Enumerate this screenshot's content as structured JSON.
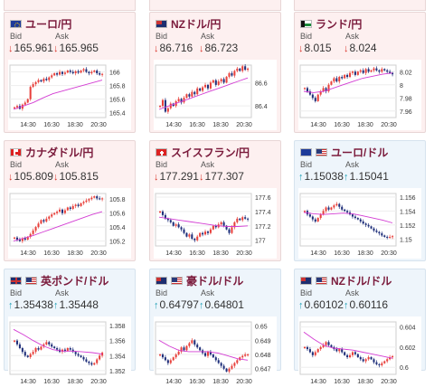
{
  "labels": {
    "bid": "Bid",
    "ask": "Ask"
  },
  "colors": {
    "down": "#d9342b",
    "up": "#1f9fb5",
    "candle_up": "#e8413c",
    "candle_down": "#1f2f7a",
    "ma": "#d33cd3"
  },
  "cards": [
    {
      "pair": "ユーロ/円",
      "flag": "eu",
      "direction": "down",
      "bid": "165.961",
      "ask": "165.965",
      "yticks": [
        "166",
        "165.8",
        "165.6",
        "165.4"
      ],
      "xticks": [
        "14:30",
        "16:30",
        "18:30",
        "20:30"
      ],
      "ylim": [
        165.33,
        166.1
      ],
      "ohlc": [
        165.48,
        165.5,
        165.46,
        165.52,
        165.55,
        165.6,
        165.78,
        165.82,
        165.85,
        165.88,
        165.86,
        165.9,
        165.88,
        165.92,
        165.95,
        165.98,
        165.96,
        166.0,
        165.97,
        165.99,
        166.02,
        166.0,
        165.98,
        166.01,
        165.99,
        166.02,
        166.04,
        166.0,
        165.98,
        166.0,
        166.02,
        165.98,
        165.96,
        165.97
      ],
      "ma": [
        165.45,
        165.5,
        165.55,
        165.62,
        165.68,
        165.72,
        165.76,
        165.8,
        165.84,
        165.88
      ]
    },
    {
      "pair": "NZドル/円",
      "flag": "nz",
      "direction": "down",
      "bid": "86.716",
      "ask": "86.723",
      "yticks": [
        "86.6",
        "86.4"
      ],
      "xticks": [
        "14:30",
        "16:30",
        "18:30",
        "20:30"
      ],
      "ylim": [
        86.3,
        86.75
      ],
      "ohlc": [
        86.4,
        86.45,
        86.35,
        86.38,
        86.42,
        86.4,
        86.44,
        86.46,
        86.43,
        86.47,
        86.5,
        86.48,
        86.52,
        86.5,
        86.55,
        86.53,
        86.56,
        86.58,
        86.55,
        86.6,
        86.62,
        86.58,
        86.61,
        86.63,
        86.6,
        86.65,
        86.68,
        86.66,
        86.7,
        86.72,
        86.7,
        86.74,
        86.71,
        86.72
      ],
      "ma": [
        86.37,
        86.4,
        86.43,
        86.46,
        86.49,
        86.52,
        86.55,
        86.58,
        86.61,
        86.64
      ]
    },
    {
      "pair": "ランド/円",
      "flag": "za",
      "direction": "down",
      "bid": "8.015",
      "ask": "8.024",
      "yticks": [
        "8.02",
        "8",
        "7.98",
        "7.96"
      ],
      "xticks": [
        "14:30",
        "16:30",
        "18:30",
        "20:30"
      ],
      "ylim": [
        7.95,
        8.03
      ],
      "ohlc": [
        7.995,
        7.99,
        7.985,
        7.98,
        7.975,
        7.985,
        7.99,
        7.995,
        7.99,
        8.0,
        8.005,
        8.01,
        8.005,
        8.012,
        8.01,
        8.015,
        8.012,
        8.018,
        8.02,
        8.015,
        8.02,
        8.022,
        8.018,
        8.024,
        8.02,
        8.022,
        8.025,
        8.022,
        8.02,
        8.024,
        8.022,
        8.02,
        8.018,
        8.016
      ],
      "ma": [
        7.99,
        7.988,
        7.99,
        7.995,
        8.0,
        8.005,
        8.01,
        8.013,
        8.016,
        8.018
      ]
    },
    {
      "pair": "カナダドル/円",
      "flag": "ca",
      "direction": "down",
      "bid": "105.809",
      "ask": "105.815",
      "yticks": [
        "105.8",
        "105.6",
        "105.4",
        "105.2"
      ],
      "xticks": [
        "14:30",
        "16:30",
        "18:30",
        "20:30"
      ],
      "ylim": [
        105.13,
        105.88
      ],
      "ohlc": [
        105.25,
        105.22,
        105.2,
        105.24,
        105.22,
        105.26,
        105.3,
        105.35,
        105.4,
        105.45,
        105.5,
        105.48,
        105.52,
        105.55,
        105.58,
        105.6,
        105.62,
        105.65,
        105.6,
        105.64,
        105.68,
        105.66,
        105.7,
        105.72,
        105.7,
        105.74,
        105.76,
        105.78,
        105.8,
        105.82,
        105.84,
        105.81,
        105.8,
        105.81
      ],
      "ma": [
        105.2,
        105.24,
        105.28,
        105.33,
        105.38,
        105.43,
        105.48,
        105.53,
        105.58,
        105.62
      ]
    },
    {
      "pair": "スイスフラン/円",
      "flag": "ch",
      "direction": "down",
      "bid": "177.291",
      "ask": "177.307",
      "yticks": [
        "177.6",
        "177.4",
        "177.2",
        "177"
      ],
      "xticks": [
        "14:30",
        "16:30",
        "18:30",
        "20:30"
      ],
      "ylim": [
        176.92,
        177.65
      ],
      "ohlc": [
        177.4,
        177.35,
        177.3,
        177.28,
        177.25,
        177.2,
        177.22,
        177.18,
        177.15,
        177.1,
        177.05,
        177.08,
        177.02,
        177.0,
        177.05,
        177.1,
        177.08,
        177.12,
        177.1,
        177.15,
        177.2,
        177.18,
        177.22,
        177.25,
        177.2,
        177.15,
        177.1,
        177.18,
        177.25,
        177.3,
        177.28,
        177.32,
        177.3,
        177.29
      ],
      "ma": [
        177.32,
        177.3,
        177.28,
        177.26,
        177.24,
        177.22,
        177.2,
        177.19,
        177.19,
        177.2
      ]
    },
    {
      "pair": "ユーロ/ドル",
      "flag": "eu_us",
      "direction": "up",
      "bid": "1.15038",
      "ask": "1.15041",
      "yticks": [
        "1.156",
        "1.154",
        "1.152",
        "1.15"
      ],
      "xticks": [
        "14:30",
        "16:30",
        "18:30",
        "20:30"
      ],
      "ylim": [
        1.149,
        1.1565
      ],
      "ohlc": [
        1.154,
        1.1535,
        1.1532,
        1.1528,
        1.1525,
        1.153,
        1.1535,
        1.154,
        1.1545,
        1.1542,
        1.1545,
        1.1548,
        1.155,
        1.1546,
        1.1542,
        1.154,
        1.1538,
        1.1535,
        1.1532,
        1.153,
        1.1528,
        1.1525,
        1.1522,
        1.152,
        1.1518,
        1.1515,
        1.1512,
        1.151,
        1.1508,
        1.1505,
        1.1503,
        1.1502,
        1.1503,
        1.1504
      ],
      "ma": [
        1.1538,
        1.1536,
        1.1535,
        1.1536,
        1.1537,
        1.1536,
        1.1533,
        1.153,
        1.1527,
        1.1523
      ]
    },
    {
      "pair": "英ポンド/ドル",
      "flag": "uk_us",
      "direction": "up",
      "bid": "1.35438",
      "ask": "1.35448",
      "yticks": [
        "1.358",
        "1.356",
        "1.354",
        "1.352"
      ],
      "xticks": [
        "14:30",
        "16:30",
        "18:30",
        "20:30"
      ],
      "ylim": [
        1.3515,
        1.3585
      ],
      "ohlc": [
        1.356,
        1.3555,
        1.355,
        1.3545,
        1.354,
        1.3538,
        1.3542,
        1.3545,
        1.355,
        1.3548,
        1.3552,
        1.3555,
        1.3558,
        1.3555,
        1.3552,
        1.355,
        1.3548,
        1.3545,
        1.3548,
        1.3546,
        1.355,
        1.3548,
        1.3545,
        1.3542,
        1.354,
        1.3538,
        1.3535,
        1.3532,
        1.353,
        1.3528,
        1.353,
        1.3535,
        1.354,
        1.3544
      ],
      "ma": [
        1.3575,
        1.3568,
        1.356,
        1.3553,
        1.3548,
        1.3546,
        1.3546,
        1.3545,
        1.3544,
        1.3542
      ]
    },
    {
      "pair": "豪ドル/ドル",
      "flag": "au_us",
      "direction": "up",
      "bid": "0.64797",
      "ask": "0.64801",
      "yticks": [
        "0.65",
        "0.649",
        "0.648",
        "0.647"
      ],
      "xticks": [
        "14:30",
        "16:30",
        "18:30",
        "20:30"
      ],
      "ylim": [
        0.6466,
        0.6503
      ],
      "ohlc": [
        0.648,
        0.6478,
        0.6476,
        0.6474,
        0.6476,
        0.6478,
        0.648,
        0.6482,
        0.6485,
        0.6483,
        0.6486,
        0.6488,
        0.649,
        0.6487,
        0.6485,
        0.6483,
        0.6481,
        0.6479,
        0.6482,
        0.648,
        0.6478,
        0.6476,
        0.6474,
        0.6472,
        0.647,
        0.6468,
        0.647,
        0.6472,
        0.6474,
        0.6476,
        0.6478,
        0.6479,
        0.648,
        0.648
      ],
      "ma": [
        0.649,
        0.6486,
        0.6483,
        0.6482,
        0.6482,
        0.6482,
        0.6481,
        0.6479,
        0.6477,
        0.6476
      ]
    },
    {
      "pair": "NZドル/ドル",
      "flag": "nz_us",
      "direction": "up",
      "bid": "0.60102",
      "ask": "0.60116",
      "yticks": [
        "0.604",
        "0.602",
        "0.6"
      ],
      "xticks": [
        "14:30",
        "16:30",
        "18:30",
        "20:30"
      ],
      "ylim": [
        0.5993,
        0.6045
      ],
      "ohlc": [
        0.602,
        0.6018,
        0.6015,
        0.6012,
        0.6015,
        0.6018,
        0.602,
        0.6022,
        0.6025,
        0.6022,
        0.602,
        0.6018,
        0.6016,
        0.6018,
        0.6015,
        0.6012,
        0.601,
        0.6012,
        0.6015,
        0.6013,
        0.601,
        0.6008,
        0.6006,
        0.6008,
        0.601,
        0.6008,
        0.6005,
        0.6003,
        0.6002,
        0.6004,
        0.6006,
        0.6008,
        0.601,
        0.6011
      ],
      "ma": [
        0.6035,
        0.6028,
        0.6022,
        0.6019,
        0.6018,
        0.6017,
        0.6015,
        0.6013,
        0.6011,
        0.6009
      ]
    }
  ]
}
